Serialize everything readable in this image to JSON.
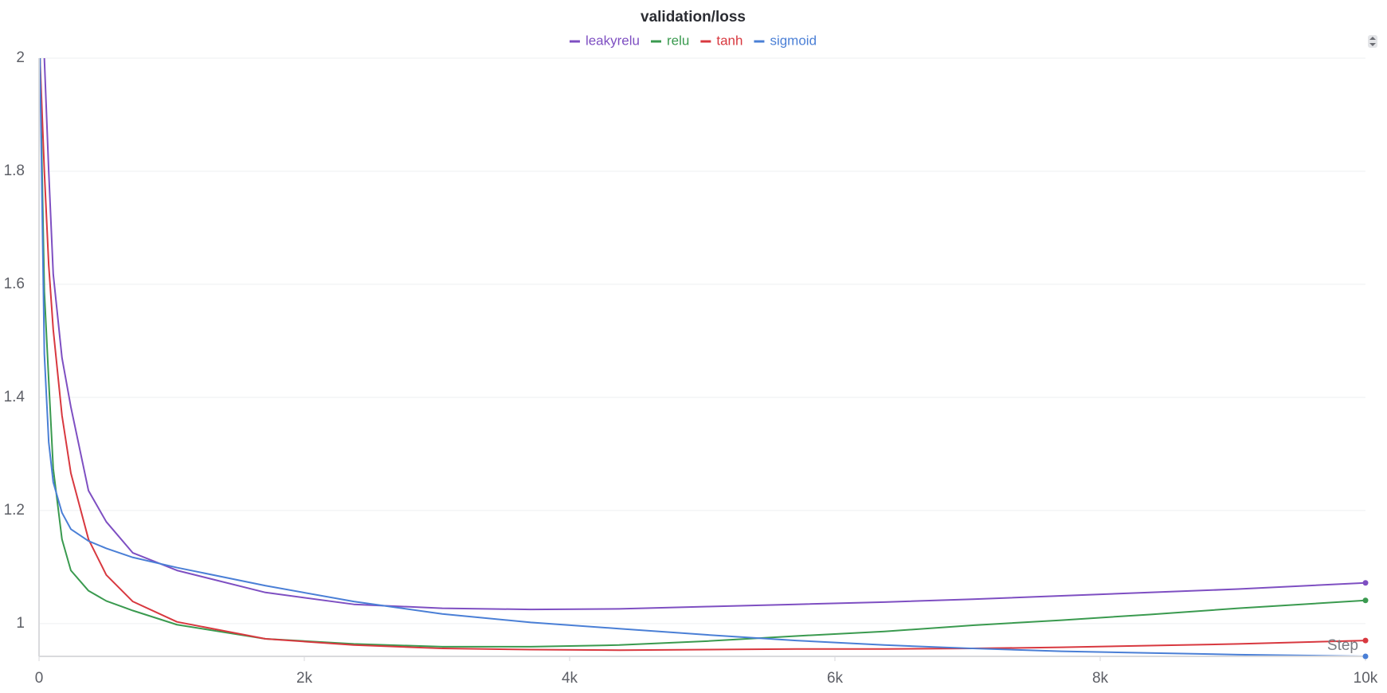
{
  "chart_data": {
    "type": "line",
    "title": "validation/loss",
    "x_label": "Step",
    "x": [
      7,
      40,
      73,
      107,
      173,
      240,
      373,
      507,
      707,
      1040,
      1707,
      2373,
      3040,
      3707,
      4373,
      5040,
      5707,
      6373,
      7040,
      7707,
      8373,
      9040,
      10000
    ],
    "series": [
      {
        "name": "leakyrelu",
        "color": "#7e4fc2",
        "values": [
          null,
          2.0,
          1.8,
          1.618,
          1.47,
          1.383,
          1.235,
          1.18,
          1.125,
          1.094,
          1.055,
          1.034,
          1.027,
          1.025,
          1.026,
          1.03,
          1.034,
          1.038,
          1.043,
          1.049,
          1.055,
          1.061,
          1.072
        ]
      },
      {
        "name": "relu",
        "color": "#3a9a4f",
        "values": [
          2.0,
          1.587,
          1.43,
          1.274,
          1.149,
          1.094,
          1.058,
          1.04,
          1.023,
          0.998,
          0.973,
          0.964,
          0.959,
          0.959,
          0.962,
          0.969,
          0.978,
          0.986,
          0.997,
          1.006,
          1.016,
          1.027,
          1.041
        ]
      },
      {
        "name": "tanh",
        "color": "#d8383f",
        "values": [
          2.0,
          1.8,
          1.634,
          1.52,
          1.368,
          1.266,
          1.149,
          1.086,
          1.039,
          1.003,
          0.973,
          0.962,
          0.956,
          0.954,
          0.953,
          0.954,
          0.955,
          0.955,
          0.956,
          0.958,
          0.961,
          0.964,
          0.97
        ]
      },
      {
        "name": "sigmoid",
        "color": "#4a7fd6",
        "values": [
          2.0,
          1.477,
          1.321,
          1.25,
          1.196,
          1.167,
          1.146,
          1.133,
          1.117,
          1.099,
          1.067,
          1.039,
          1.017,
          1.002,
          0.991,
          0.98,
          0.97,
          0.962,
          0.956,
          0.951,
          0.948,
          0.945,
          0.942
        ]
      }
    ],
    "xlim": [
      0,
      10000
    ],
    "xticks": [
      0,
      {
        "value": 2000,
        "label": "2k"
      },
      {
        "value": 4000,
        "label": "4k"
      },
      {
        "value": 6000,
        "label": "6k"
      },
      {
        "value": 8000,
        "label": "8k"
      },
      {
        "value": 10000,
        "label": "10k"
      }
    ],
    "ylim": [
      0.942,
      2
    ],
    "yticks": [
      1,
      1.2,
      1.4,
      1.6,
      1.8,
      2
    ],
    "grid": true
  }
}
